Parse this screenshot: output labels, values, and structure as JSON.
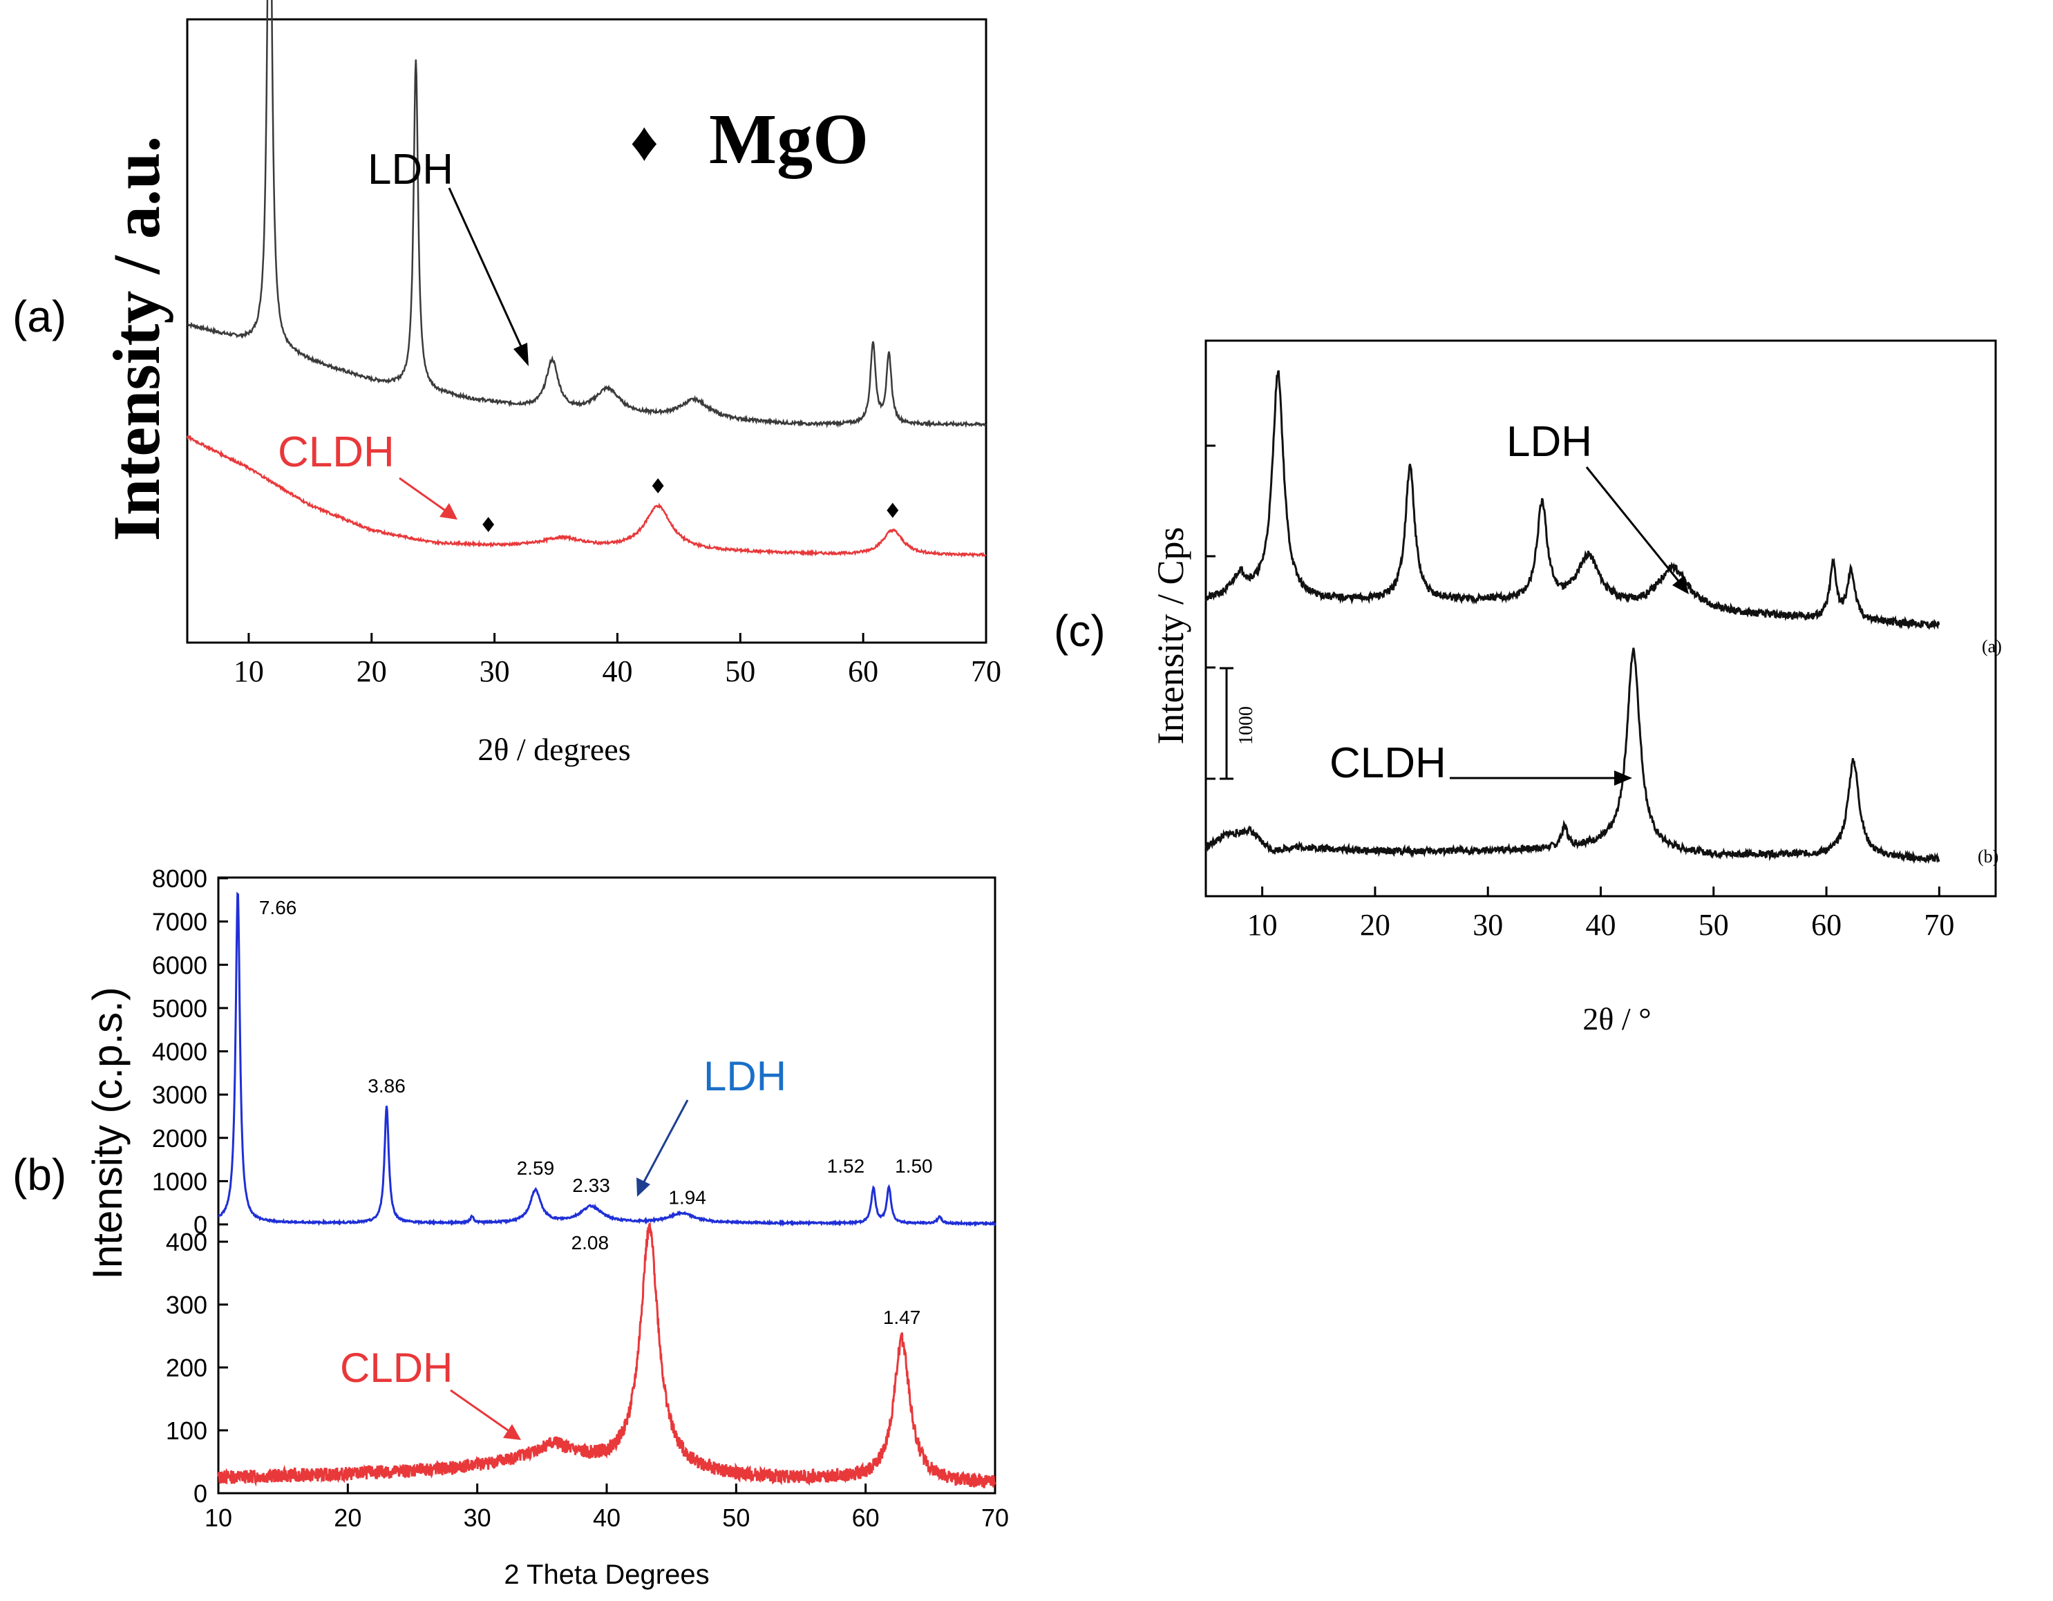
{
  "figure": {
    "panel_labels": {
      "a": "(a)",
      "b": "(b)",
      "c": "(c)"
    },
    "colors": {
      "black_trace": "#3a3a3a",
      "red_trace": "#e8383a",
      "blue_trace": "#1f2fd6",
      "ldh_blue_label": "#1a6fc8",
      "axis": "#000000"
    }
  },
  "chart_data": [
    {
      "id": "a",
      "type": "line",
      "title": "",
      "xlabel": "2θ / degrees",
      "ylabel": "Intensity / a.u.",
      "xlim": [
        5,
        70
      ],
      "ylim": [
        0,
        100
      ],
      "xticks": [
        10,
        20,
        30,
        40,
        50,
        60,
        70
      ],
      "yticks_labeled": false,
      "legend": {
        "symbol": "♦",
        "text": "MgO",
        "position": "top-right"
      },
      "annotations": [
        {
          "text": "LDH",
          "target_x": 34.0,
          "series": "LDH"
        },
        {
          "text": "CLDH",
          "target_x": 29.0,
          "series": "CLDH"
        }
      ],
      "markers": {
        "symbol": "♦",
        "series": "CLDH",
        "x": [
          29.5,
          43.3,
          62.4
        ]
      },
      "series": [
        {
          "name": "LDH",
          "color": "#3a3a3a",
          "baseline": [
            [
              5,
              51
            ],
            [
              12,
              47
            ],
            [
              20,
              42
            ],
            [
              28,
              39
            ],
            [
              35,
              37
            ],
            [
              45,
              36
            ],
            [
              55,
              35
            ],
            [
              63,
              35
            ],
            [
              70,
              35
            ]
          ],
          "peaks": [
            [
              11.7,
              93,
              0.22
            ],
            [
              23.6,
              53,
              0.22
            ],
            [
              34.7,
              8,
              0.6
            ],
            [
              39.2,
              4,
              1.2
            ],
            [
              46.3,
              3,
              1.4
            ],
            [
              60.8,
              13,
              0.25
            ],
            [
              62.1,
              11,
              0.25
            ]
          ]
        },
        {
          "name": "CLDH",
          "color": "#e8383a",
          "baseline": [
            [
              5,
              33
            ],
            [
              10,
              28
            ],
            [
              15,
              22
            ],
            [
              20,
              18
            ],
            [
              25,
              16
            ],
            [
              30,
              15.5
            ],
            [
              40,
              15
            ],
            [
              50,
              14.5
            ],
            [
              60,
              14
            ],
            [
              70,
              14
            ]
          ],
          "peaks": [
            [
              35.5,
              1.5,
              2.0
            ],
            [
              43.3,
              7,
              1.3
            ],
            [
              62.4,
              4,
              1.0
            ]
          ]
        }
      ]
    },
    {
      "id": "b",
      "type": "line",
      "title": "",
      "xlabel": "2 Theta Degrees",
      "ylabel": "Intensity (c.p.s.)",
      "xlim": [
        10,
        70
      ],
      "xticks": [
        10,
        20,
        30,
        40,
        50,
        60,
        70
      ],
      "xtick_labels": [
        "10",
        "20",
        "30",
        "40",
        "50",
        "60",
        "70"
      ],
      "upper_ylim": [
        0,
        8000
      ],
      "upper_yticks": [
        0,
        1000,
        2000,
        3000,
        4000,
        5000,
        6000,
        7000,
        8000
      ],
      "upper_ytick_labels": [
        "0",
        "1000",
        "2000",
        "3000",
        "4000",
        "5000",
        "6000",
        "7000",
        "8000"
      ],
      "lower_ylim": [
        0,
        420
      ],
      "lower_yticks": [
        0,
        100,
        200,
        300,
        400
      ],
      "lower_ytick_labels": [
        "0",
        "100",
        "200",
        "300",
        "400"
      ],
      "annotations": [
        {
          "text": "LDH",
          "target_x": 42.5,
          "series": "LDH"
        },
        {
          "text": "CLDH",
          "target_x": 34.0,
          "series": "CLDH"
        }
      ],
      "peak_labels": [
        {
          "text": "7.66",
          "x": 11.5,
          "y": 7650,
          "series": "LDH"
        },
        {
          "text": "3.86",
          "x": 23.0,
          "y": 2700,
          "series": "LDH"
        },
        {
          "text": "2.59",
          "x": 34.5,
          "y": 800,
          "series": "LDH"
        },
        {
          "text": "2.33",
          "x": 38.8,
          "y": 400,
          "series": "LDH"
        },
        {
          "text": "1.94",
          "x": 45.8,
          "y": 250,
          "series": "LDH"
        },
        {
          "text": "1.52",
          "x": 60.6,
          "y": 850,
          "series": "LDH"
        },
        {
          "text": "1.50",
          "x": 61.8,
          "y": 850,
          "series": "LDH"
        },
        {
          "text": "2.08",
          "x": 43.3,
          "y": 410,
          "series": "CLDH"
        },
        {
          "text": "1.47",
          "x": 62.8,
          "y": 245,
          "series": "CLDH"
        }
      ],
      "series": [
        {
          "name": "LDH",
          "color": "#1f2fd6",
          "baseline": [
            [
              10,
              50
            ],
            [
              12,
              40
            ],
            [
              20,
              30
            ],
            [
              30,
              30
            ],
            [
              40,
              30
            ],
            [
              50,
              30
            ],
            [
              60,
              25
            ],
            [
              70,
              20
            ]
          ],
          "peaks": [
            [
              11.5,
              7650,
              0.2
            ],
            [
              23.0,
              2700,
              0.2
            ],
            [
              29.6,
              150,
              0.15
            ],
            [
              34.5,
              750,
              0.5
            ],
            [
              38.8,
              380,
              1.0
            ],
            [
              45.8,
              220,
              1.2
            ],
            [
              60.6,
              800,
              0.2
            ],
            [
              61.8,
              820,
              0.2
            ],
            [
              65.7,
              150,
              0.2
            ]
          ]
        },
        {
          "name": "CLDH",
          "color": "#e8383a",
          "baseline": [
            [
              10,
              25
            ],
            [
              20,
              30
            ],
            [
              28,
              38
            ],
            [
              32,
              48
            ],
            [
              36,
              58
            ],
            [
              40,
              45
            ],
            [
              50,
              25
            ],
            [
              60,
              20
            ],
            [
              70,
              15
            ]
          ],
          "peaks": [
            [
              35.8,
              18,
              1.5
            ],
            [
              43.3,
              380,
              0.85
            ],
            [
              62.8,
              225,
              0.75
            ]
          ]
        }
      ]
    },
    {
      "id": "c",
      "type": "line",
      "title": "",
      "xlabel": "2θ / °",
      "ylabel": "Intensity / Cps",
      "xlim": [
        5,
        75
      ],
      "ylim": [
        0,
        100
      ],
      "xticks": [
        10,
        20,
        30,
        40,
        50,
        60,
        70
      ],
      "scale_bar": {
        "label": "1000"
      },
      "curve_labels": [
        {
          "text": "(a)",
          "series": "LDH"
        },
        {
          "text": "(b)",
          "series": "CLDH"
        }
      ],
      "annotations": [
        {
          "text": "LDH",
          "target_x": 46.5,
          "series": "LDH"
        },
        {
          "text": "CLDH",
          "target_x": 42.0,
          "series": "CLDH"
        }
      ],
      "series": [
        {
          "name": "LDH",
          "color": "#111111",
          "baseline": [
            [
              5,
              50
            ],
            [
              8,
              51
            ],
            [
              14,
              50
            ],
            [
              20,
              50
            ],
            [
              30,
              50
            ],
            [
              40,
              49
            ],
            [
              50,
              48
            ],
            [
              60,
              47
            ],
            [
              70,
              46
            ]
          ],
          "peaks": [
            [
              11.4,
              37,
              0.6
            ],
            [
              8.0,
              3,
              0.7
            ],
            [
              23.1,
              22,
              0.5
            ],
            [
              34.8,
              16,
              0.55
            ],
            [
              38.9,
              8,
              1.2
            ],
            [
              46.4,
              7,
              1.6
            ],
            [
              60.6,
              9,
              0.35
            ],
            [
              62.2,
              8,
              0.4
            ]
          ]
        },
        {
          "name": "CLDH",
          "color": "#111111",
          "baseline": [
            [
              5,
              6
            ],
            [
              7,
              9
            ],
            [
              9,
              8
            ],
            [
              11,
              5
            ],
            [
              13,
              6
            ],
            [
              20,
              5
            ],
            [
              30,
              5
            ],
            [
              40,
              6
            ],
            [
              50,
              4
            ],
            [
              60,
              4
            ],
            [
              70,
              3
            ]
          ],
          "peaks": [
            [
              8.8,
              2,
              0.8
            ],
            [
              36.8,
              5,
              0.3
            ],
            [
              42.9,
              48,
              0.7
            ],
            [
              62.4,
              23,
              0.6
            ]
          ]
        }
      ]
    }
  ]
}
